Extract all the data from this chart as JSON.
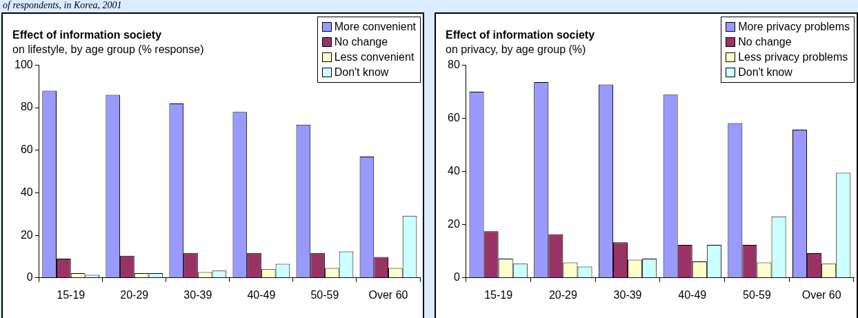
{
  "chart_data": [
    {
      "type": "bar",
      "title": "Effect of information society",
      "subtitle": "on lifestyle, by age group (% response)",
      "annotations": [
        "of respondents, in Korea, 2001"
      ],
      "categories": [
        "15-19",
        "20-29",
        "30-39",
        "40-49",
        "50-59",
        "Over 60"
      ],
      "series": [
        {
          "name": "More convenient",
          "color": "#9999ff",
          "values": [
            88,
            86,
            82,
            78,
            72,
            57
          ]
        },
        {
          "name": "No change",
          "color": "#993366",
          "values": [
            9,
            10.4,
            11.7,
            11.7,
            11.7,
            9.8
          ]
        },
        {
          "name": "Less convenient",
          "color": "#ffffcc",
          "values": [
            2.2,
            2.2,
            2.7,
            4.1,
            4.6,
            4.6
          ]
        },
        {
          "name": "Don't know",
          "color": "#ccffff",
          "values": [
            1.4,
            2.2,
            3.4,
            6.6,
            12.4,
            29.2
          ]
        }
      ],
      "ylim": [
        0,
        100
      ],
      "yticks": [
        0,
        20,
        40,
        60,
        80,
        100
      ],
      "grid": false,
      "legend": "top right"
    },
    {
      "type": "bar",
      "title": "Effect of information society",
      "subtitle": "on privacy, by age group (%)",
      "categories": [
        "15-19",
        "20-29",
        "30-39",
        "40-49",
        "50-59",
        "Over 60"
      ],
      "series": [
        {
          "name": "More privacy problems",
          "color": "#9999ff",
          "values": [
            70,
            73.6,
            72.7,
            68.9,
            58.2,
            55.7
          ]
        },
        {
          "name": "No change",
          "color": "#993366",
          "values": [
            17.5,
            16.4,
            13.4,
            12.4,
            12.4,
            9.3
          ]
        },
        {
          "name": "Less privacy problems",
          "color": "#ffffcc",
          "values": [
            7.2,
            5.8,
            6.8,
            6.2,
            5.8,
            5.3
          ]
        },
        {
          "name": "Don't know",
          "color": "#ccffff",
          "values": [
            5.3,
            4.2,
            7.2,
            12.4,
            23.1,
            39.5
          ]
        }
      ],
      "ylim": [
        0,
        80
      ],
      "yticks": [
        0,
        20,
        40,
        60,
        80
      ],
      "grid": false,
      "legend": "top right"
    }
  ]
}
